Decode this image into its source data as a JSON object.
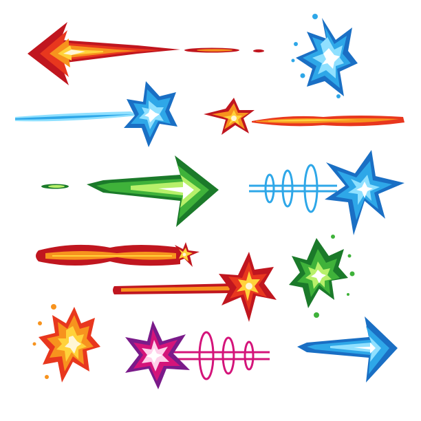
{
  "sheet": {
    "background": "#ffffff",
    "palette": {
      "red": "#c0161f",
      "red_mid": "#e8371e",
      "orange": "#f7931e",
      "yellow": "#ffd23a",
      "cream": "#fff6d6",
      "blue_dark": "#1a6fc4",
      "blue": "#2ea7e8",
      "blue_light": "#8fe0ff",
      "green_dark": "#1b7a2a",
      "green": "#3fb23a",
      "green_light": "#b7f06a",
      "magenta": "#d4147a",
      "purple": "#7a1b8a",
      "pink_light": "#ffd0ea"
    }
  },
  "effects": [
    {
      "name": "fire-arrow-effect",
      "kind": "arrow",
      "color": "red",
      "direction": "left"
    },
    {
      "name": "ice-splash-effect",
      "kind": "splash",
      "color": "blue",
      "direction": "right"
    },
    {
      "name": "ice-trail-burst-effect",
      "kind": "trail-burst",
      "color": "blue",
      "direction": "right"
    },
    {
      "name": "fire-star-trail-effect",
      "kind": "star-trail",
      "color": "orange",
      "direction": "left"
    },
    {
      "name": "green-arrow-effect",
      "kind": "arrow",
      "color": "green",
      "direction": "right"
    },
    {
      "name": "blue-ring-blast-effect",
      "kind": "ring-blast",
      "color": "blue",
      "direction": "right"
    },
    {
      "name": "red-laser-effect",
      "kind": "laser",
      "color": "red",
      "direction": "right"
    },
    {
      "name": "fire-comet-effect",
      "kind": "comet",
      "color": "red",
      "direction": "right"
    },
    {
      "name": "green-splash-effect",
      "kind": "splash",
      "color": "green",
      "direction": "left"
    },
    {
      "name": "orange-flame-burst-effect",
      "kind": "burst",
      "color": "orange",
      "direction": "right"
    },
    {
      "name": "magenta-ring-blast-effect",
      "kind": "ring-blast",
      "color": "magenta",
      "direction": "left"
    },
    {
      "name": "cyan-arrow-effect",
      "kind": "arrow",
      "color": "blue",
      "direction": "right"
    }
  ]
}
